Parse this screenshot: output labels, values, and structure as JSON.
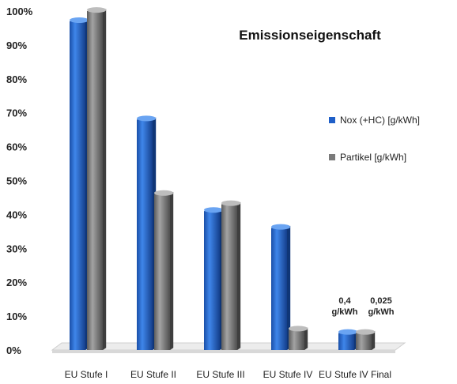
{
  "chart_data": {
    "type": "bar",
    "title": "Emissionseigenschaft",
    "categories": [
      "EU Stufe I",
      "EU Stufe II",
      "EU Stufe III",
      "EU Stufe IV",
      "EU Stufe IV Final"
    ],
    "series": [
      {
        "name": "Nox (+HC) [g/kWh]",
        "color": "#1f5fc8",
        "values": [
          97,
          68,
          41,
          36,
          5
        ]
      },
      {
        "name": "Partikel [g/kWh]",
        "color": "#7a7a7a",
        "values": [
          100,
          46,
          43,
          6,
          5
        ]
      }
    ],
    "ylim": [
      0,
      100
    ],
    "yticks": [
      "0%",
      "10%",
      "20%",
      "30%",
      "40%",
      "50%",
      "60%",
      "70%",
      "80%",
      "90%",
      "100%"
    ],
    "legend_position": "right",
    "annotations": [
      {
        "category_index": 4,
        "series_index": 0,
        "lines": [
          "0,4",
          "g/kWh"
        ]
      },
      {
        "category_index": 4,
        "series_index": 1,
        "lines": [
          "0,025",
          "g/kWh"
        ]
      }
    ]
  }
}
